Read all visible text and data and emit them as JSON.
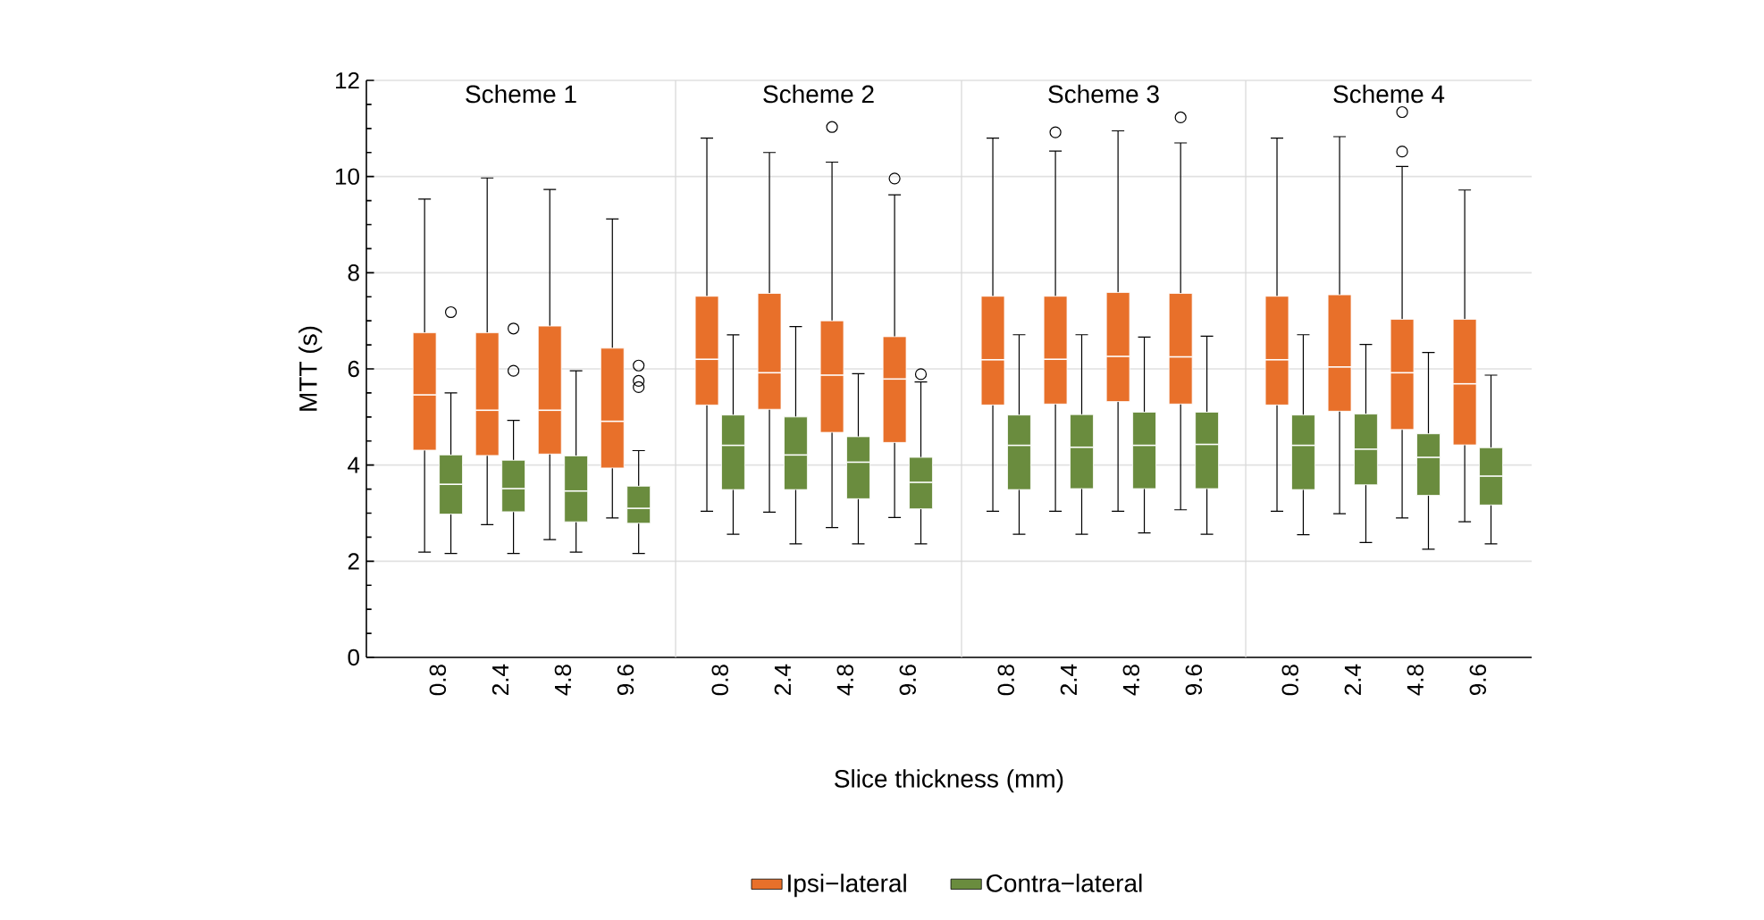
{
  "chart_data": [
    {
      "type": "box",
      "title": "Scheme 1",
      "ylabel": "MTT (s)",
      "categories": [
        "0.8",
        "2.4",
        "4.8",
        "9.6"
      ],
      "ylim": [
        0,
        12
      ],
      "yticks": [
        0,
        2,
        4,
        6,
        8,
        10,
        12
      ],
      "grid": "y",
      "series": [
        {
          "color": "#e8702a",
          "boxes": [
            {
              "low": 2.19,
              "q1": 4.31,
              "median": 5.46,
              "q3": 6.75,
              "high": 9.53
            },
            {
              "low": 2.76,
              "q1": 4.2,
              "median": 5.14,
              "q3": 6.75,
              "high": 9.97
            },
            {
              "low": 2.45,
              "q1": 4.23,
              "median": 5.14,
              "q3": 6.89,
              "high": 9.73
            },
            {
              "low": 2.9,
              "q1": 3.94,
              "median": 4.91,
              "q3": 6.43,
              "high": 9.12
            }
          ]
        },
        {
          "color": "#6a8c3e",
          "boxes": [
            {
              "low": 2.16,
              "q1": 2.98,
              "median": 3.6,
              "q3": 4.21,
              "high": 5.5,
              "outliers": [
                7.18
              ]
            },
            {
              "low": 2.16,
              "q1": 3.03,
              "median": 3.51,
              "q3": 4.1,
              "high": 4.93,
              "outliers": [
                6.84,
                5.96
              ]
            },
            {
              "low": 2.19,
              "q1": 2.82,
              "median": 3.46,
              "q3": 4.19,
              "high": 5.96
            },
            {
              "low": 2.16,
              "q1": 2.79,
              "median": 3.1,
              "q3": 3.56,
              "high": 4.3,
              "outliers": [
                6.07,
                5.75,
                5.62
              ]
            }
          ]
        }
      ]
    },
    {
      "type": "box",
      "title": "Scheme 2",
      "xlabel": "Slice thickness (mm)",
      "categories": [
        "0.8",
        "2.4",
        "4.8",
        "9.6"
      ],
      "ylim": [
        0,
        12
      ],
      "yticks": [
        0,
        2,
        4,
        6,
        8,
        10,
        12
      ],
      "grid": "y",
      "tick_labels": "x",
      "legend": "bottom",
      "series": [
        {
          "name": "Ipsi−lateral",
          "color": "#e8702a",
          "boxes": [
            {
              "low": 3.04,
              "q1": 5.25,
              "median": 6.2,
              "q3": 7.51,
              "high": 10.8
            },
            {
              "low": 3.02,
              "q1": 5.16,
              "median": 5.92,
              "q3": 7.57,
              "high": 10.5
            },
            {
              "low": 2.7,
              "q1": 4.68,
              "median": 5.87,
              "q3": 7.0,
              "high": 10.3,
              "outliers": [
                11.03
              ]
            },
            {
              "low": 2.91,
              "q1": 4.47,
              "median": 5.79,
              "q3": 6.67,
              "high": 9.62,
              "outliers": [
                9.96
              ]
            }
          ]
        },
        {
          "name": "Contra−lateral",
          "color": "#6a8c3e",
          "boxes": [
            {
              "low": 2.56,
              "q1": 3.49,
              "median": 4.41,
              "q3": 5.04,
              "high": 6.71
            },
            {
              "low": 2.36,
              "q1": 3.49,
              "median": 4.21,
              "q3": 5.0,
              "high": 6.88
            },
            {
              "low": 2.36,
              "q1": 3.3,
              "median": 4.06,
              "q3": 4.59,
              "high": 5.9
            },
            {
              "low": 2.36,
              "q1": 3.09,
              "median": 3.64,
              "q3": 4.16,
              "high": 5.73,
              "outliers": [
                5.89
              ]
            }
          ]
        }
      ]
    },
    {
      "type": "box",
      "title": "Scheme 3",
      "categories": [
        "0.8",
        "2.4",
        "4.8",
        "9.6"
      ],
      "ylim": [
        0,
        12
      ],
      "yticks": [
        0,
        2,
        4,
        6,
        8,
        10,
        12
      ],
      "grid": "y",
      "tick_labels": "x",
      "series": [
        {
          "color": "#e8702a",
          "boxes": [
            {
              "low": 3.04,
              "q1": 5.25,
              "median": 6.19,
              "q3": 7.51,
              "high": 10.8
            },
            {
              "low": 3.04,
              "q1": 5.27,
              "median": 6.2,
              "q3": 7.51,
              "high": 10.53,
              "outliers": [
                10.92
              ]
            },
            {
              "low": 3.04,
              "q1": 5.32,
              "median": 6.26,
              "q3": 7.59,
              "high": 10.95
            },
            {
              "low": 3.07,
              "q1": 5.27,
              "median": 6.25,
              "q3": 7.57,
              "high": 10.7,
              "outliers": [
                11.23
              ]
            }
          ]
        },
        {
          "color": "#6a8c3e",
          "boxes": [
            {
              "low": 2.56,
              "q1": 3.49,
              "median": 4.41,
              "q3": 5.04,
              "high": 6.71
            },
            {
              "low": 2.56,
              "q1": 3.51,
              "median": 4.37,
              "q3": 5.05,
              "high": 6.71
            },
            {
              "low": 2.59,
              "q1": 3.51,
              "median": 4.41,
              "q3": 5.1,
              "high": 6.66
            },
            {
              "low": 2.56,
              "q1": 3.51,
              "median": 4.43,
              "q3": 5.1,
              "high": 6.68
            }
          ]
        }
      ]
    },
    {
      "type": "box",
      "title": "Scheme 4",
      "categories": [
        "0.8",
        "2.4",
        "4.8",
        "9.6"
      ],
      "ylim": [
        0,
        12
      ],
      "yticks": [
        0,
        2,
        4,
        6,
        8,
        10,
        12
      ],
      "grid": "y",
      "tick_labels": "x",
      "series": [
        {
          "color": "#e8702a",
          "boxes": [
            {
              "low": 3.04,
              "q1": 5.25,
              "median": 6.19,
              "q3": 7.51,
              "high": 10.8
            },
            {
              "low": 2.99,
              "q1": 5.12,
              "median": 6.04,
              "q3": 7.54,
              "high": 10.83
            },
            {
              "low": 2.9,
              "q1": 4.74,
              "median": 5.92,
              "q3": 7.03,
              "high": 10.21,
              "outliers": [
                11.34,
                10.52
              ]
            },
            {
              "low": 2.82,
              "q1": 4.42,
              "median": 5.69,
              "q3": 7.03,
              "high": 9.72
            }
          ]
        },
        {
          "color": "#6a8c3e",
          "boxes": [
            {
              "low": 2.55,
              "q1": 3.49,
              "median": 4.41,
              "q3": 5.04,
              "high": 6.71
            },
            {
              "low": 2.39,
              "q1": 3.59,
              "median": 4.33,
              "q3": 5.06,
              "high": 6.51
            },
            {
              "low": 2.25,
              "q1": 3.37,
              "median": 4.16,
              "q3": 4.65,
              "high": 6.34
            },
            {
              "low": 2.36,
              "q1": 3.17,
              "median": 3.77,
              "q3": 4.36,
              "high": 5.87
            }
          ]
        }
      ]
    }
  ]
}
